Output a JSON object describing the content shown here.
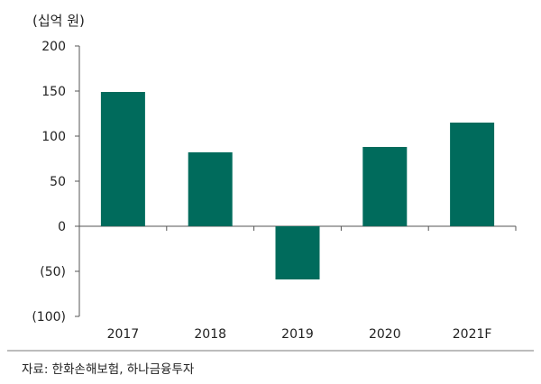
{
  "chart_data": {
    "type": "bar",
    "unit_label": "(십억 원)",
    "categories": [
      "2017",
      "2018",
      "2019",
      "2020",
      "2021F"
    ],
    "values": [
      149,
      82,
      -59,
      88,
      115
    ],
    "ylim": [
      -100,
      200
    ],
    "yticks": [
      200,
      150,
      100,
      50,
      0,
      -50,
      -100
    ],
    "ytick_labels": [
      "200",
      "150",
      "100",
      "50",
      "0",
      "(50)",
      "(100)"
    ],
    "bar_color": "#006b5c",
    "grid": false,
    "legend": "none",
    "title": "",
    "xlabel": "",
    "ylabel": ""
  },
  "source": "자료: 한화손해보험, 하나금융투자"
}
